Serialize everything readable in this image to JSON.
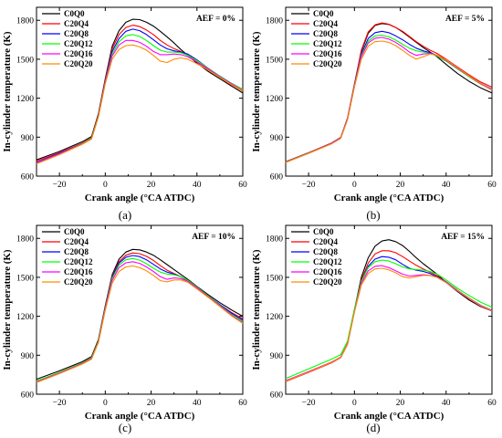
{
  "figure": {
    "caption": ""
  },
  "chart_data": [
    {
      "type": "line",
      "panel_label": "(a)",
      "annotation": "AEF = 0%",
      "xlabel": "Crank angle (°CA ATDC)",
      "ylabel": "In-cylinder temperature (K)",
      "xlim": [
        -30,
        60
      ],
      "ylim": [
        600,
        1900
      ],
      "xticks": [
        -20,
        0,
        20,
        40,
        60
      ],
      "yticks": [
        600,
        900,
        1200,
        1500,
        1800
      ],
      "legend_position": "top-left",
      "x": [
        -30,
        -20,
        -10,
        -6,
        -3,
        0,
        3,
        6,
        9,
        12,
        15,
        18,
        21,
        24,
        27,
        30,
        33,
        36,
        40,
        45,
        50,
        55,
        60
      ],
      "series": [
        {
          "name": "C0Q0",
          "color": "#000000",
          "values": [
            725,
            790,
            865,
            905,
            1080,
            1350,
            1600,
            1720,
            1785,
            1808,
            1805,
            1785,
            1755,
            1715,
            1672,
            1625,
            1575,
            1530,
            1470,
            1405,
            1350,
            1295,
            1240
          ]
        },
        {
          "name": "C20Q4",
          "color": "#ff0000",
          "values": [
            715,
            780,
            855,
            895,
            1070,
            1340,
            1580,
            1690,
            1745,
            1762,
            1752,
            1725,
            1690,
            1645,
            1610,
            1582,
            1560,
            1530,
            1480,
            1420,
            1360,
            1305,
            1255
          ]
        },
        {
          "name": "C20Q8",
          "color": "#0000ff",
          "values": [
            705,
            775,
            850,
            890,
            1065,
            1330,
            1560,
            1660,
            1715,
            1732,
            1720,
            1690,
            1650,
            1610,
            1580,
            1565,
            1555,
            1540,
            1495,
            1430,
            1370,
            1315,
            1265
          ]
        },
        {
          "name": "C20Q12",
          "color": "#00ff00",
          "values": [
            700,
            770,
            850,
            892,
            1065,
            1325,
            1540,
            1635,
            1680,
            1690,
            1675,
            1645,
            1605,
            1570,
            1555,
            1555,
            1550,
            1530,
            1490,
            1430,
            1370,
            1315,
            1268
          ]
        },
        {
          "name": "C20Q16",
          "color": "#ff00ff",
          "values": [
            700,
            770,
            848,
            888,
            1060,
            1320,
            1525,
            1610,
            1645,
            1645,
            1630,
            1600,
            1560,
            1535,
            1535,
            1540,
            1535,
            1520,
            1480,
            1425,
            1365,
            1312,
            1262
          ]
        },
        {
          "name": "C20Q20",
          "color": "#ff8c00",
          "values": [
            695,
            765,
            845,
            885,
            1055,
            1310,
            1500,
            1575,
            1605,
            1610,
            1595,
            1570,
            1530,
            1485,
            1475,
            1500,
            1510,
            1500,
            1465,
            1415,
            1360,
            1305,
            1258
          ]
        }
      ]
    },
    {
      "type": "line",
      "panel_label": "(b)",
      "annotation": "AEF = 5%",
      "xlabel": "Crank angle (°CA ATDC)",
      "ylabel": "In-cylinder temperature (K)",
      "xlim": [
        -30,
        60
      ],
      "ylim": [
        600,
        1900
      ],
      "xticks": [
        -20,
        0,
        20,
        40,
        60
      ],
      "yticks": [
        600,
        900,
        1200,
        1500,
        1800
      ],
      "legend_position": "top-left",
      "x": [
        -30,
        -20,
        -10,
        -6,
        -3,
        0,
        3,
        6,
        9,
        12,
        15,
        18,
        21,
        24,
        27,
        30,
        33,
        36,
        40,
        45,
        50,
        55,
        60
      ],
      "series": [
        {
          "name": "C0Q0",
          "color": "#000000",
          "values": [
            710,
            780,
            850,
            895,
            1040,
            1300,
            1560,
            1700,
            1760,
            1775,
            1768,
            1745,
            1710,
            1670,
            1630,
            1590,
            1555,
            1520,
            1460,
            1390,
            1330,
            1280,
            1240
          ]
        },
        {
          "name": "C20Q4",
          "color": "#ff0000",
          "values": [
            710,
            780,
            855,
            898,
            1050,
            1310,
            1570,
            1710,
            1765,
            1780,
            1770,
            1745,
            1715,
            1675,
            1635,
            1600,
            1570,
            1545,
            1500,
            1440,
            1380,
            1325,
            1285
          ]
        },
        {
          "name": "C20Q8",
          "color": "#0000ff",
          "values": [
            708,
            778,
            852,
            895,
            1045,
            1300,
            1540,
            1660,
            1705,
            1715,
            1705,
            1680,
            1650,
            1615,
            1585,
            1565,
            1550,
            1530,
            1490,
            1430,
            1370,
            1315,
            1270
          ]
        },
        {
          "name": "C20Q12",
          "color": "#00ff00",
          "values": [
            708,
            778,
            850,
            893,
            1040,
            1295,
            1530,
            1640,
            1680,
            1685,
            1672,
            1648,
            1615,
            1585,
            1565,
            1555,
            1545,
            1525,
            1485,
            1425,
            1365,
            1310,
            1265
          ]
        },
        {
          "name": "C20Q16",
          "color": "#ff00ff",
          "values": [
            706,
            776,
            850,
            892,
            1040,
            1290,
            1520,
            1625,
            1662,
            1668,
            1655,
            1630,
            1595,
            1555,
            1530,
            1540,
            1545,
            1530,
            1490,
            1430,
            1370,
            1312,
            1262
          ]
        },
        {
          "name": "C20Q20",
          "color": "#ff8c00",
          "values": [
            705,
            775,
            848,
            890,
            1035,
            1285,
            1500,
            1600,
            1635,
            1640,
            1630,
            1605,
            1568,
            1530,
            1500,
            1520,
            1540,
            1532,
            1495,
            1435,
            1372,
            1315,
            1265
          ]
        }
      ]
    },
    {
      "type": "line",
      "panel_label": "(c)",
      "annotation": "AEF = 10%",
      "xlabel": "Crank angle (°CA ATDC)",
      "ylabel": "In-cylinder temperature (K)",
      "xlim": [
        -30,
        60
      ],
      "ylim": [
        600,
        1900
      ],
      "xticks": [
        -20,
        0,
        20,
        40,
        60
      ],
      "yticks": [
        600,
        900,
        1200,
        1500,
        1800
      ],
      "legend_position": "top-left",
      "x": [
        -30,
        -20,
        -10,
        -6,
        -3,
        0,
        3,
        6,
        9,
        12,
        15,
        18,
        21,
        24,
        27,
        30,
        33,
        36,
        40,
        45,
        50,
        55,
        60
      ],
      "series": [
        {
          "name": "C0Q0",
          "color": "#000000",
          "values": [
            715,
            780,
            850,
            890,
            1020,
            1280,
            1520,
            1640,
            1695,
            1715,
            1712,
            1695,
            1670,
            1635,
            1598,
            1560,
            1522,
            1485,
            1430,
            1365,
            1305,
            1250,
            1200
          ]
        },
        {
          "name": "C20Q4",
          "color": "#ff0000",
          "values": [
            700,
            768,
            842,
            880,
            1010,
            1270,
            1510,
            1620,
            1670,
            1688,
            1682,
            1662,
            1630,
            1590,
            1555,
            1530,
            1505,
            1470,
            1420,
            1355,
            1290,
            1230,
            1180
          ]
        },
        {
          "name": "C20Q8",
          "color": "#0000ff",
          "values": [
            700,
            766,
            840,
            878,
            1008,
            1265,
            1500,
            1610,
            1655,
            1668,
            1660,
            1635,
            1600,
            1565,
            1540,
            1525,
            1505,
            1475,
            1425,
            1355,
            1290,
            1225,
            1170
          ]
        },
        {
          "name": "C20Q12",
          "color": "#00ff00",
          "values": [
            702,
            768,
            842,
            880,
            1008,
            1262,
            1490,
            1595,
            1635,
            1645,
            1632,
            1605,
            1570,
            1540,
            1525,
            1520,
            1505,
            1478,
            1425,
            1355,
            1285,
            1215,
            1160
          ]
        },
        {
          "name": "C20Q16",
          "color": "#ff00ff",
          "values": [
            695,
            762,
            836,
            875,
            1002,
            1255,
            1475,
            1575,
            1612,
            1620,
            1608,
            1580,
            1545,
            1505,
            1485,
            1495,
            1490,
            1470,
            1420,
            1350,
            1280,
            1210,
            1150
          ]
        },
        {
          "name": "C20Q20",
          "color": "#ff8c00",
          "values": [
            690,
            758,
            832,
            870,
            998,
            1245,
            1455,
            1545,
            1580,
            1588,
            1575,
            1550,
            1515,
            1475,
            1465,
            1480,
            1480,
            1462,
            1410,
            1345,
            1275,
            1205,
            1145
          ]
        }
      ]
    },
    {
      "type": "line",
      "panel_label": "(d)",
      "annotation": "AEF = 15%",
      "xlabel": "Crank angle (°CA ATDC)",
      "ylabel": "In-cylinder temperature (K)",
      "xlim": [
        -30,
        60
      ],
      "ylim": [
        600,
        1900
      ],
      "xticks": [
        -20,
        0,
        20,
        40,
        60
      ],
      "yticks": [
        600,
        900,
        1200,
        1500,
        1800
      ],
      "legend_position": "top-left",
      "x": [
        -30,
        -20,
        -10,
        -6,
        -3,
        0,
        3,
        6,
        9,
        12,
        15,
        18,
        21,
        24,
        27,
        30,
        33,
        36,
        40,
        45,
        50,
        55,
        60
      ],
      "series": [
        {
          "name": "C0Q0",
          "color": "#000000",
          "values": [
            700,
            770,
            845,
            885,
            990,
            1250,
            1500,
            1650,
            1740,
            1780,
            1790,
            1775,
            1745,
            1700,
            1650,
            1605,
            1565,
            1525,
            1460,
            1390,
            1325,
            1275,
            1240
          ]
        },
        {
          "name": "C20Q4",
          "color": "#ff0000",
          "values": [
            698,
            768,
            842,
            882,
            985,
            1240,
            1480,
            1610,
            1680,
            1705,
            1705,
            1690,
            1660,
            1625,
            1592,
            1565,
            1540,
            1512,
            1465,
            1400,
            1335,
            1280,
            1245
          ]
        },
        {
          "name": "C20Q8",
          "color": "#0000ff",
          "values": [
            700,
            770,
            845,
            884,
            988,
            1240,
            1470,
            1585,
            1640,
            1660,
            1655,
            1635,
            1600,
            1570,
            1555,
            1545,
            1530,
            1505,
            1465,
            1400,
            1340,
            1285,
            1245
          ]
        },
        {
          "name": "C20Q12",
          "color": "#00ff00",
          "values": [
            720,
            795,
            870,
            905,
            1010,
            1255,
            1470,
            1575,
            1620,
            1632,
            1625,
            1605,
            1580,
            1565,
            1560,
            1555,
            1545,
            1525,
            1480,
            1415,
            1360,
            1310,
            1270
          ]
        },
        {
          "name": "C20Q16",
          "color": "#ff00ff",
          "values": [
            705,
            775,
            848,
            886,
            990,
            1235,
            1455,
            1550,
            1585,
            1590,
            1575,
            1550,
            1525,
            1510,
            1515,
            1520,
            1515,
            1500,
            1460,
            1395,
            1335,
            1280,
            1240
          ]
        },
        {
          "name": "C20Q20",
          "color": "#ff8c00",
          "values": [
            700,
            770,
            845,
            884,
            986,
            1230,
            1440,
            1530,
            1565,
            1570,
            1558,
            1535,
            1505,
            1495,
            1505,
            1515,
            1515,
            1500,
            1460,
            1398,
            1338,
            1283,
            1242
          ]
        }
      ]
    }
  ]
}
